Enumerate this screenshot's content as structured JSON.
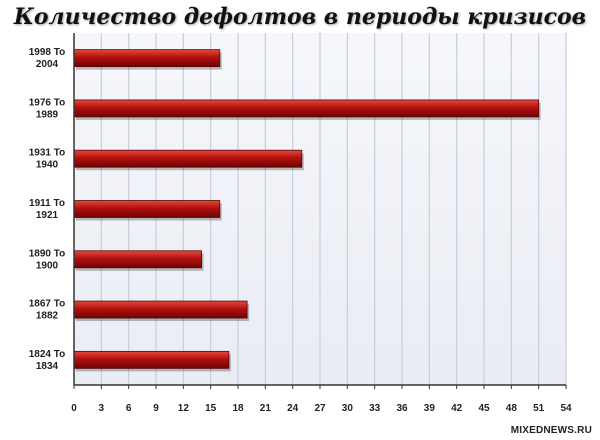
{
  "chart_data": {
    "type": "bar",
    "orientation": "horizontal",
    "title": "Количество дефолтов в периоды кризисов",
    "categories": [
      [
        "1998 To",
        "2004"
      ],
      [
        "1976 To",
        "1989"
      ],
      [
        "1931 To",
        "1940"
      ],
      [
        "1911 To",
        "1921"
      ],
      [
        "1890 To",
        "1900"
      ],
      [
        "1867 To",
        "1882"
      ],
      [
        "1824 To",
        "1834"
      ]
    ],
    "values": [
      16,
      51,
      25,
      16,
      14,
      19,
      17
    ],
    "xlim": [
      0,
      54
    ],
    "xticks": [
      0,
      3,
      6,
      9,
      12,
      15,
      18,
      21,
      24,
      27,
      30,
      33,
      36,
      39,
      42,
      45,
      48,
      51,
      54
    ],
    "grid": true,
    "legend": "none",
    "bar_color": "#b3100e",
    "grid_color": "#c7cdda",
    "plot_background": "#f1f3f8"
  },
  "watermark": "MIXEDNEWS.RU"
}
